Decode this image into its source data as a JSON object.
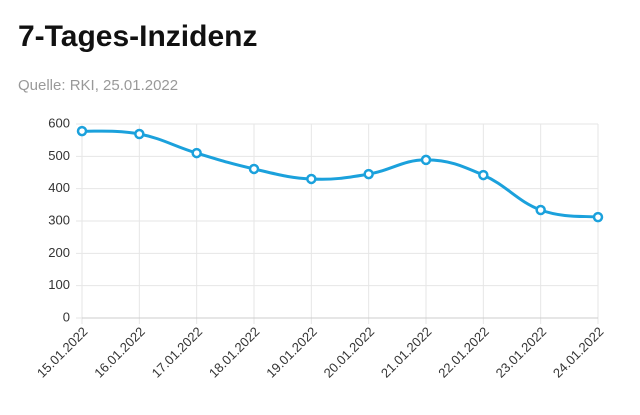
{
  "chart_data": {
    "type": "line",
    "title": "7-Tages-Inzidenz",
    "subtitle": "Quelle: RKI, 25.01.2022",
    "x": [
      "15.01.2022",
      "16.01.2022",
      "17.01.2022",
      "18.01.2022",
      "19.01.2022",
      "20.01.2022",
      "21.01.2022",
      "22.01.2022",
      "23.01.2022",
      "24.01.2022"
    ],
    "values": [
      578,
      569,
      510,
      461,
      430,
      445,
      489,
      442,
      334,
      312
    ],
    "color": "#1ba1dc",
    "ylim": [
      0,
      600
    ],
    "yticks": [
      0,
      100,
      200,
      300,
      400,
      500,
      600
    ],
    "grid": true
  }
}
